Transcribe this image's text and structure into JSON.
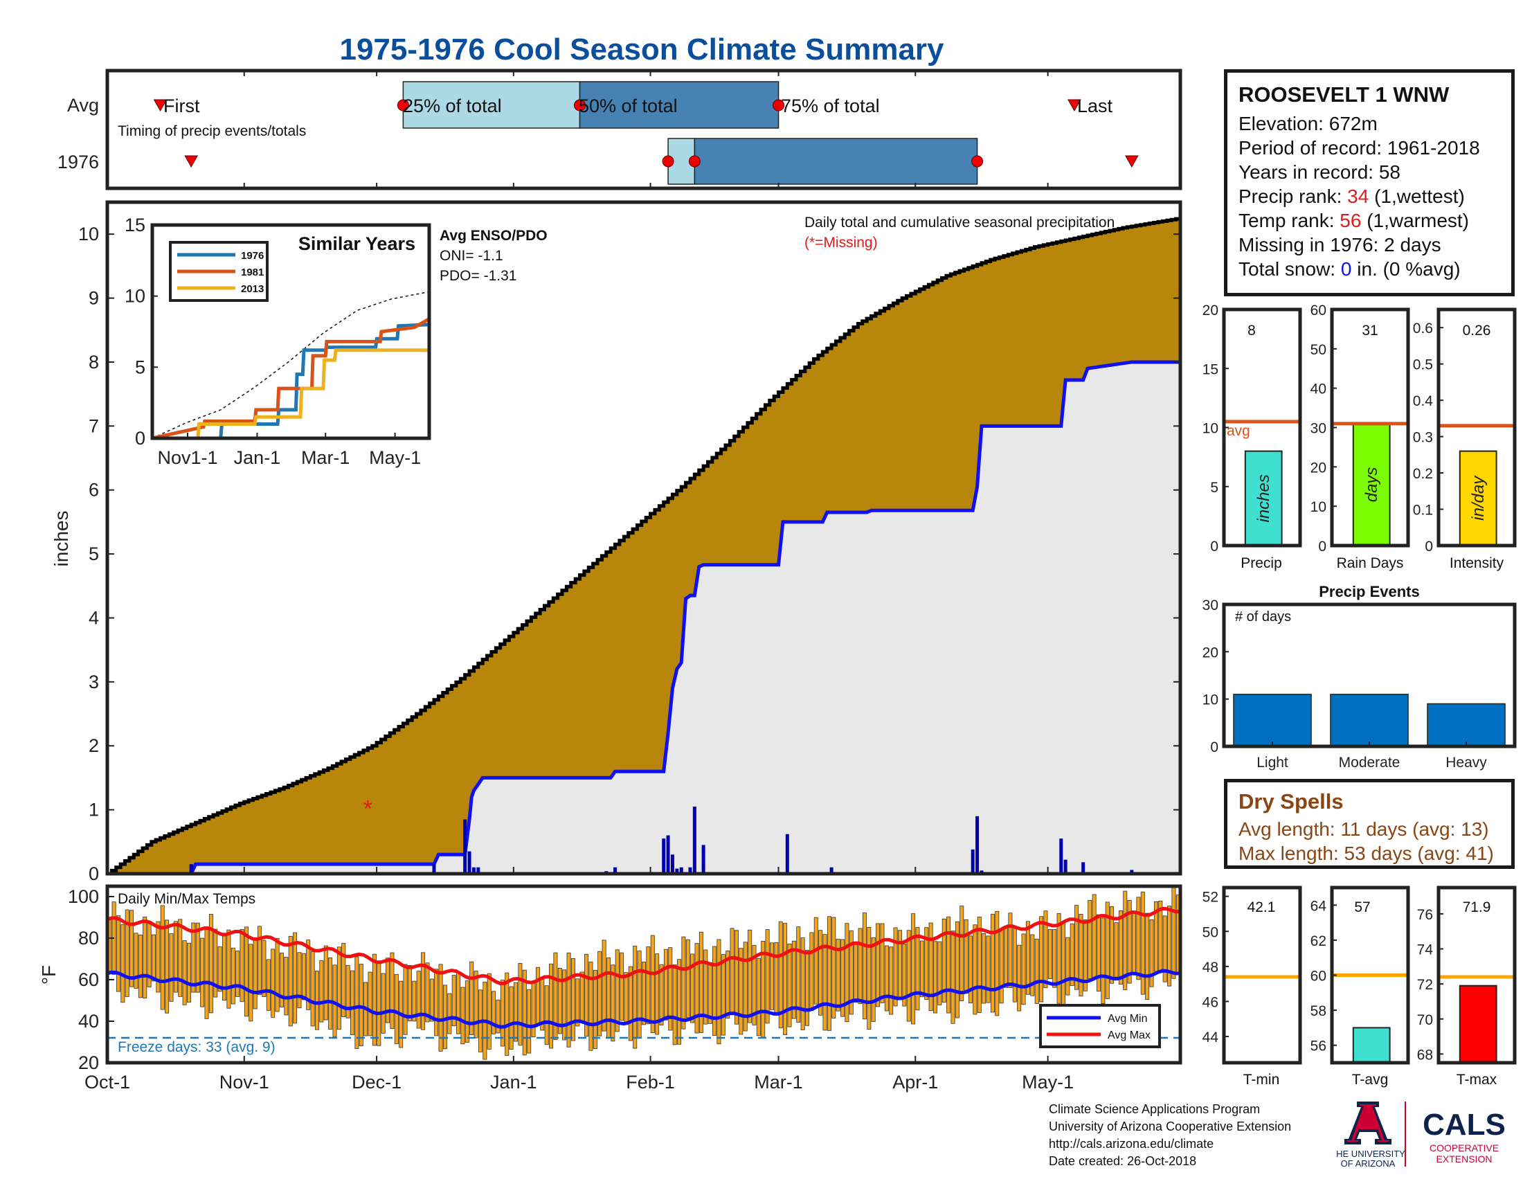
{
  "title": "1975-1976 Cool Season Climate Summary",
  "timing": {
    "row_labels": [
      "Avg",
      "1976"
    ],
    "caption": "Timing of precip events/totals",
    "first_label": "First",
    "last_label": "Last",
    "q25_label": "25% of total",
    "q50_label": "50% of total",
    "q75_label": "75% of total"
  },
  "station": {
    "name": "ROOSEVELT 1 WNW",
    "elevation": "Elevation: 672m",
    "period": "Period of record: 1961-2018",
    "years": "Years in record: 58",
    "precip_rank_prefix": "Precip rank: ",
    "precip_rank_value": "34",
    "precip_rank_suffix": " (1,wettest)",
    "temp_rank_prefix": "Temp rank: ",
    "temp_rank_value": "56",
    "temp_rank_suffix": " (1,warmest)",
    "missing": "Missing in 1976: 2 days",
    "snow_prefix": "Total snow: ",
    "snow_value": "0",
    "snow_suffix": " in. (0 %avg)"
  },
  "dry_spells": {
    "title": "Dry Spells",
    "avg_length": "Avg length: 11 days (avg: 13)",
    "max_length": "Max length: 53 days (avg: 41)"
  },
  "footer": {
    "line1": "Climate Science Applications Program",
    "line2": "University of Arizona Cooperative Extension",
    "line3": "http://cals.arizona.edu/climate",
    "line4": " Date created: 26-Oct-2018"
  },
  "logos": {
    "ua_line1": "THE UNIVERSITY",
    "ua_line2": "OF ARIZONA",
    "cals": "CALS",
    "cals_sub1": "COOPERATIVE",
    "cals_sub2": "EXTENSION",
    "ua_red": "#cc0033",
    "ua_blue": "#0c234b"
  },
  "chart_data": [
    {
      "id": "timing",
      "type": "bar",
      "x_range_days": [
        0,
        243
      ],
      "avg": {
        "first": 12,
        "q25": 67,
        "q50": 107,
        "q75": 152,
        "last": 219
      },
      "y1976": {
        "first": 19,
        "q25": 127,
        "q50": 133,
        "q75": 197,
        "last": 232
      }
    },
    {
      "id": "main_precip",
      "type": "area",
      "ylabel": "inches",
      "ylim": [
        0,
        10.5
      ],
      "yticks": [
        0,
        1,
        2,
        3,
        4,
        5,
        6,
        7,
        8,
        9,
        10
      ],
      "xticks": [
        {
          "day": 0,
          "label": "Oct-1"
        },
        {
          "day": 31,
          "label": "Nov-1"
        },
        {
          "day": 61,
          "label": "Dec-1"
        },
        {
          "day": 92,
          "label": "Jan-1"
        },
        {
          "day": 123,
          "label": "Feb-1"
        },
        {
          "day": 152,
          "label": "Mar-1"
        },
        {
          "day": 183,
          "label": "Apr-1"
        },
        {
          "day": 213,
          "label": "May-1"
        }
      ],
      "annotation": "Daily total and cumulative seasonal precipitation",
      "missing_note": "(*=Missing)",
      "missing_marker": {
        "day": 59,
        "value": 1.0
      },
      "avg_cumulative": {
        "days": [
          0,
          10,
          20,
          30,
          40,
          50,
          60,
          70,
          80,
          90,
          100,
          110,
          120,
          130,
          140,
          150,
          160,
          170,
          180,
          190,
          200,
          210,
          220,
          230,
          243
        ],
        "values": [
          0,
          0.5,
          0.8,
          1.1,
          1.35,
          1.65,
          2.0,
          2.5,
          3.05,
          3.65,
          4.25,
          4.85,
          5.45,
          6.05,
          6.7,
          7.4,
          8.05,
          8.6,
          9.0,
          9.35,
          9.6,
          9.8,
          9.95,
          10.1,
          10.25
        ]
      },
      "obs_cumulative": {
        "days": [
          0,
          19,
          20,
          74,
          75,
          81,
          82,
          82.5,
          83,
          84,
          85,
          114,
          115,
          126,
          127,
          128,
          129,
          130,
          131,
          132,
          133,
          134,
          135,
          136,
          152,
          153,
          162,
          163,
          172,
          173,
          196,
          197,
          198,
          216,
          217,
          221,
          222,
          232,
          243
        ],
        "values": [
          0,
          0,
          0.15,
          0.15,
          0.3,
          0.3,
          0.85,
          1.2,
          1.3,
          1.4,
          1.5,
          1.5,
          1.6,
          1.6,
          2.2,
          2.9,
          3.2,
          3.3,
          4.3,
          4.35,
          4.35,
          4.8,
          4.83,
          4.83,
          4.83,
          5.5,
          5.5,
          5.65,
          5.65,
          5.68,
          5.68,
          6.05,
          7.0,
          7.0,
          7.72,
          7.72,
          7.9,
          8.0,
          8.0
        ]
      },
      "daily": {
        "days": [
          19,
          74,
          81,
          82,
          83,
          84,
          113,
          115,
          126,
          127,
          128,
          129,
          130,
          132,
          133,
          135,
          154,
          164,
          196,
          197,
          198,
          216,
          217,
          221,
          232
        ],
        "values": [
          0.15,
          0.15,
          0.85,
          0.35,
          0.1,
          0.1,
          0.04,
          0.1,
          0.55,
          0.6,
          0.3,
          0.08,
          0.1,
          0.1,
          1.05,
          0.45,
          0.62,
          0.1,
          0.38,
          0.9,
          0.05,
          0.55,
          0.22,
          0.18,
          0.06
        ]
      }
    },
    {
      "id": "similar_years",
      "type": "line",
      "title": "Similar Years",
      "ylim": [
        0,
        15
      ],
      "yticks": [
        0,
        5,
        10,
        15
      ],
      "xticks": [
        {
          "day": 31,
          "label": "Nov1-1"
        },
        {
          "day": 92,
          "label": "Jan-1"
        },
        {
          "day": 152,
          "label": "Mar-1"
        },
        {
          "day": 213,
          "label": "May-1"
        }
      ],
      "avg_dashed": {
        "days": [
          0,
          30,
          60,
          90,
          120,
          150,
          180,
          210,
          243
        ],
        "values": [
          0,
          1.1,
          2.0,
          3.6,
          5.4,
          7.4,
          9.0,
          9.8,
          10.3
        ]
      },
      "series": [
        {
          "name": "1976",
          "color": "#1f77b4",
          "days": [
            0,
            60,
            61,
            110,
            111,
            126,
            127,
            132,
            133,
            152,
            153,
            196,
            197,
            215,
            216,
            243
          ],
          "values": [
            0,
            0,
            1.0,
            1.0,
            2.0,
            2.0,
            4.5,
            4.5,
            6.2,
            6.2,
            6.4,
            6.4,
            7.0,
            7.0,
            7.9,
            8.0
          ]
        },
        {
          "name": "1981",
          "color": "#d95319",
          "days": [
            0,
            45,
            46,
            90,
            91,
            110,
            111,
            140,
            141,
            152,
            153,
            200,
            201,
            230,
            243
          ],
          "values": [
            0,
            0.8,
            1.2,
            1.2,
            2.0,
            2.0,
            3.5,
            3.5,
            5.8,
            5.8,
            6.8,
            6.8,
            7.5,
            7.8,
            8.4
          ]
        },
        {
          "name": "2013",
          "color": "#edb120",
          "days": [
            0,
            40,
            41,
            90,
            91,
            130,
            131,
            150,
            151,
            160,
            161,
            243
          ],
          "values": [
            0,
            0,
            1.0,
            1.0,
            1.5,
            1.5,
            3.5,
            3.5,
            5.5,
            5.5,
            6.2,
            6.2
          ]
        }
      ],
      "enso_title": "Avg ENSO/PDO",
      "oni": "ONI= -1.1",
      "pdo": "PDO= -1.31"
    },
    {
      "id": "precip_bar",
      "type": "bar",
      "xlabel": "Precip",
      "value": 8,
      "value_label": "8",
      "avg": 10.5,
      "avg_label": "avg",
      "bar_text": "inches",
      "ylim": [
        0,
        20
      ],
      "yticks": [
        0,
        5,
        10,
        15,
        20
      ],
      "color": "#40e0d0"
    },
    {
      "id": "rain_days_bar",
      "type": "bar",
      "xlabel": "Rain Days",
      "value": 31,
      "value_label": "31",
      "avg": 31,
      "bar_text": "days",
      "ylim": [
        0,
        60
      ],
      "yticks": [
        0,
        10,
        20,
        30,
        40,
        50,
        60
      ],
      "color": "#7cfc00"
    },
    {
      "id": "intensity_bar",
      "type": "bar",
      "xlabel": "Intensity",
      "value": 0.26,
      "value_label": "0.26",
      "avg": 0.33,
      "bar_text": "in/day",
      "ylim": [
        0,
        0.65
      ],
      "yticks": [
        "0",
        "0.1",
        "0.2",
        "0.3",
        "0.4",
        "0.5",
        "0.6"
      ],
      "color": "#ffd700"
    },
    {
      "id": "precip_events",
      "type": "bar",
      "title": "Precip Events",
      "ylabel_inside": "# of days",
      "categories": [
        "Light",
        "Moderate",
        "Heavy"
      ],
      "values": [
        11,
        11,
        9
      ],
      "ylim": [
        0,
        30
      ],
      "yticks": [
        0,
        10,
        20,
        30
      ],
      "color": "#0070c0"
    },
    {
      "id": "temps",
      "type": "bar",
      "title": "Daily Min/Max Temps",
      "ylabel": "°F",
      "ylim": [
        20,
        105
      ],
      "yticks": [
        20,
        40,
        60,
        80,
        100
      ],
      "freeze_line": 32,
      "freeze_label": "Freeze days: 33 (avg. 9)",
      "legend": [
        "Avg Min",
        "Avg Max"
      ],
      "avg_max": {
        "days": [
          0,
          30,
          60,
          90,
          120,
          150,
          180,
          210,
          243
        ],
        "values": [
          89,
          82,
          70,
          59,
          63,
          72,
          79,
          86,
          94
        ]
      },
      "avg_min": {
        "days": [
          0,
          30,
          60,
          90,
          120,
          150,
          180,
          210,
          243
        ],
        "values": [
          63,
          56,
          45,
          38,
          40,
          44,
          52,
          58,
          64
        ]
      },
      "daily_max_anchor": {
        "days": [
          0,
          15,
          30,
          45,
          60,
          70,
          75,
          90,
          100,
          110,
          120,
          135,
          150,
          165,
          180,
          195,
          210,
          225,
          243
        ],
        "values": [
          90,
          86,
          80,
          74,
          66,
          66,
          62,
          58,
          65,
          70,
          72,
          76,
          80,
          85,
          82,
          88,
          84,
          95,
          97
        ]
      },
      "daily_min_anchor": {
        "days": [
          0,
          15,
          30,
          45,
          60,
          70,
          75,
          90,
          100,
          110,
          120,
          135,
          150,
          165,
          180,
          195,
          210,
          225,
          243
        ],
        "values": [
          57,
          50,
          48,
          42,
          30,
          38,
          33,
          27,
          32,
          32,
          35,
          36,
          38,
          42,
          46,
          46,
          52,
          56,
          60
        ]
      }
    },
    {
      "id": "tmin_bar",
      "type": "bar",
      "xlabel": "T-min",
      "value": 42.1,
      "value_label": "42.1",
      "avg": 47.4,
      "ylim": [
        42.5,
        52.5
      ],
      "yticks": [
        44,
        46,
        48,
        50,
        52
      ],
      "color": "#0000ff"
    },
    {
      "id": "tavg_bar",
      "type": "bar",
      "xlabel": "T-avg",
      "value": 57,
      "value_label": "57",
      "avg": 60,
      "ylim": [
        55,
        65
      ],
      "yticks": [
        56,
        58,
        60,
        62,
        64
      ],
      "color": "#40e0d0"
    },
    {
      "id": "tmax_bar",
      "type": "bar",
      "xlabel": "T-max",
      "value": 71.9,
      "value_label": "71.9",
      "avg": 72.4,
      "ylim": [
        67.5,
        77.5
      ],
      "yticks": [
        68,
        70,
        72,
        74,
        76
      ],
      "color": "#ff0000"
    }
  ]
}
